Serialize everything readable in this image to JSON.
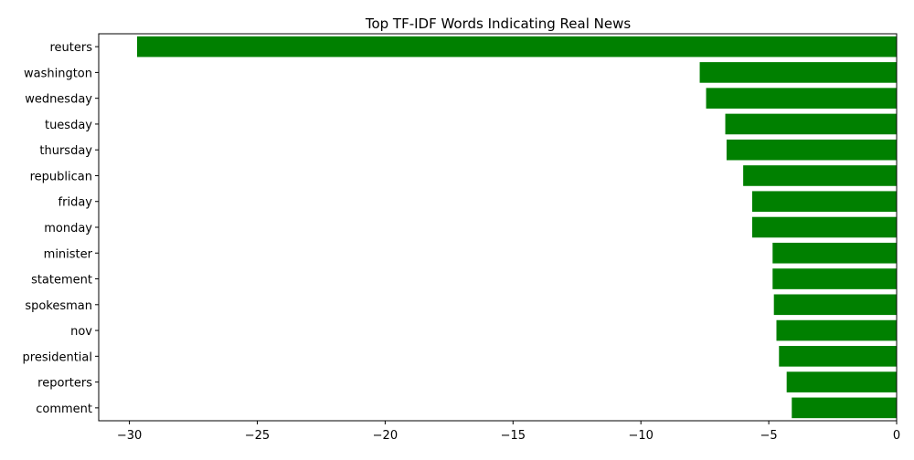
{
  "chart_data": {
    "type": "bar",
    "orientation": "horizontal",
    "title": "Top TF-IDF Words Indicating Real News",
    "xlabel": "",
    "ylabel": "",
    "categories": [
      "reuters",
      "washington",
      "wednesday",
      "tuesday",
      "thursday",
      "republican",
      "friday",
      "monday",
      "minister",
      "statement",
      "spokesman",
      "nov",
      "presidential",
      "reporters",
      "comment"
    ],
    "values": [
      -29.7,
      -7.7,
      -7.45,
      -6.7,
      -6.65,
      -6.0,
      -5.65,
      -5.65,
      -4.85,
      -4.85,
      -4.8,
      -4.7,
      -4.6,
      -4.3,
      -4.1
    ],
    "xlim": [
      -31.2,
      0
    ],
    "xticks": [
      -30,
      -25,
      -20,
      -15,
      -10,
      -5,
      0
    ],
    "xtick_labels": [
      "−30",
      "−25",
      "−20",
      "−15",
      "−10",
      "−5",
      "0"
    ],
    "bar_color": "#008000",
    "grid": false,
    "legend": "none"
  }
}
